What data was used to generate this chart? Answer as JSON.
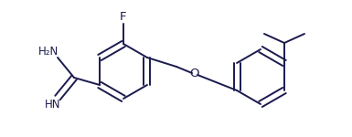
{
  "background_color": "#ffffff",
  "line_color": "#1a1a4e",
  "line_width": 1.4,
  "font_size": 8.5,
  "figsize": [
    3.85,
    1.5
  ],
  "dpi": 100,
  "xlim": [
    0,
    3.85
  ],
  "ylim": [
    0,
    1.5
  ]
}
